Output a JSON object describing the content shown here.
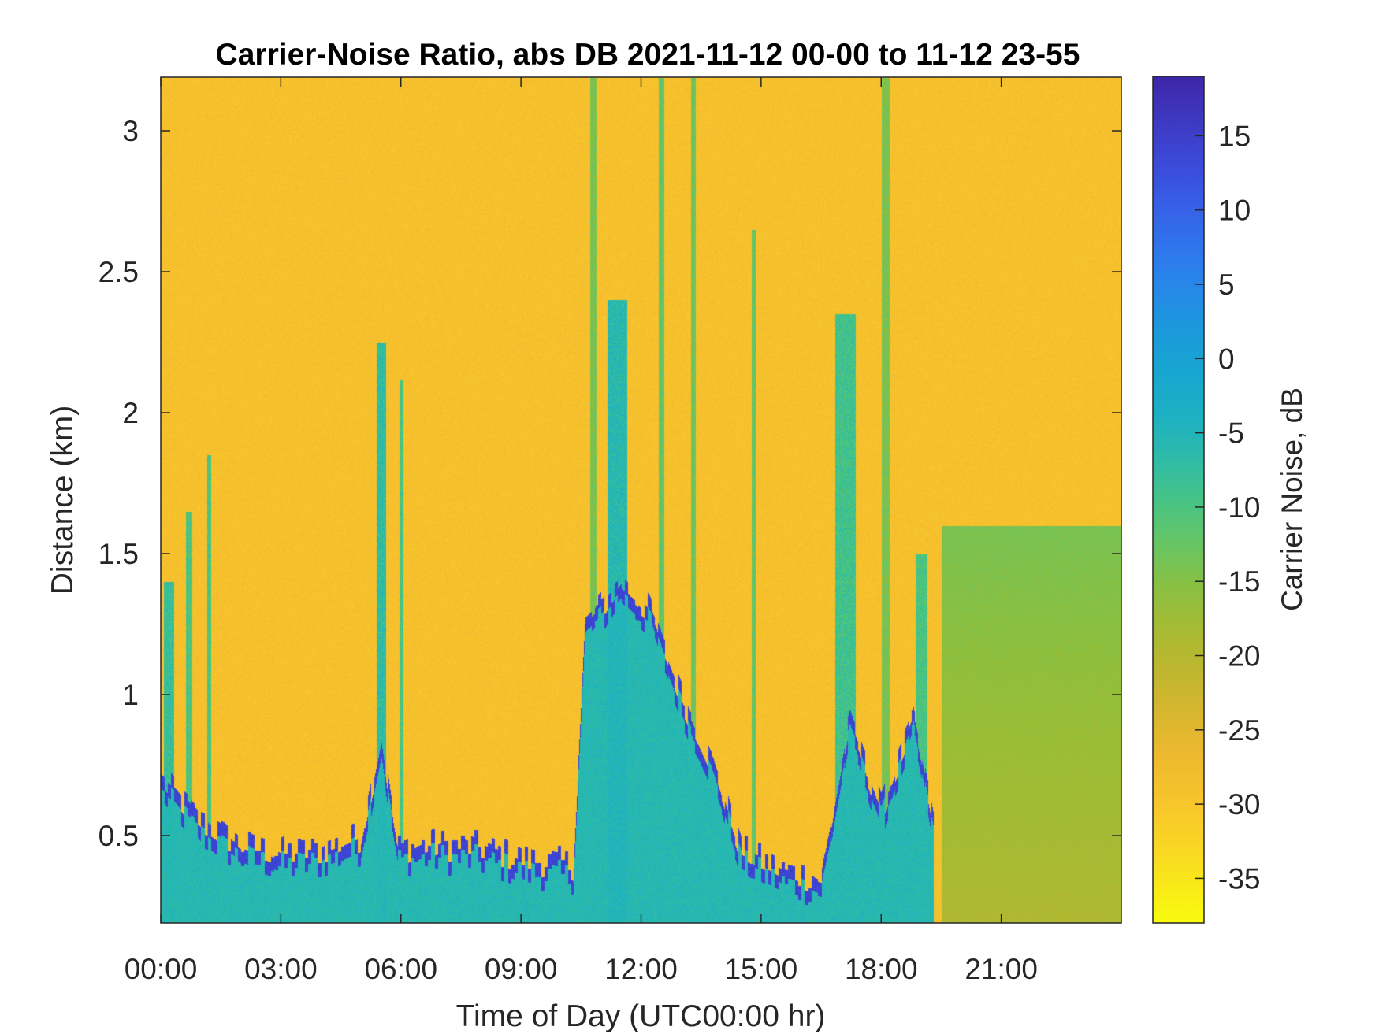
{
  "chart_data": {
    "type": "heatmap",
    "title": "Carrier-Noise Ratio, abs DB 2021-11-12 00-00 to 11-12 23-55",
    "xlabel": "Time of Day (UTC00:00 hr)",
    "ylabel": "Distance (km)",
    "colorbar_label": "Carrier Noise, dB",
    "colormap": "parula-reversed",
    "xlim_hours": [
      0,
      24
    ],
    "ylim_km": [
      0.19,
      3.19
    ],
    "clim_db": [
      -38,
      19
    ],
    "x_ticks": [
      {
        "hour": 0,
        "label": "00:00"
      },
      {
        "hour": 3,
        "label": "03:00"
      },
      {
        "hour": 6,
        "label": "06:00"
      },
      {
        "hour": 9,
        "label": "09:00"
      },
      {
        "hour": 12,
        "label": "12:00"
      },
      {
        "hour": 15,
        "label": "15:00"
      },
      {
        "hour": 18,
        "label": "18:00"
      },
      {
        "hour": 21,
        "label": "21:00"
      }
    ],
    "y_ticks": [
      {
        "km": 0.5,
        "label": "0.5"
      },
      {
        "km": 1,
        "label": "1"
      },
      {
        "km": 1.5,
        "label": "1.5"
      },
      {
        "km": 2,
        "label": "2"
      },
      {
        "km": 2.5,
        "label": "2.5"
      },
      {
        "km": 3,
        "label": "3"
      }
    ],
    "colorbar_ticks": [
      {
        "db": 15,
        "label": "15"
      },
      {
        "db": 10,
        "label": "10"
      },
      {
        "db": 5,
        "label": "5"
      },
      {
        "db": 0,
        "label": "0"
      },
      {
        "db": -5,
        "label": "-5"
      },
      {
        "db": -10,
        "label": "-10"
      },
      {
        "db": -15,
        "label": "-15"
      },
      {
        "db": -20,
        "label": "-20"
      },
      {
        "db": -25,
        "label": "-25"
      },
      {
        "db": -30,
        "label": "-30"
      },
      {
        "db": -35,
        "label": "-35"
      }
    ],
    "background_db": -29,
    "colors": {
      "bg_noise": "#f4bb30",
      "cyan": "#19b4c8",
      "teal": "#3cbf9a",
      "blue": "#3a4fe6",
      "green_far": "#9cbf3a"
    },
    "boundary_layer_top_km": [
      {
        "hour": 0.0,
        "km": 0.7
      },
      {
        "hour": 1.0,
        "km": 0.55
      },
      {
        "hour": 2.0,
        "km": 0.47
      },
      {
        "hour": 3.0,
        "km": 0.44
      },
      {
        "hour": 4.0,
        "km": 0.45
      },
      {
        "hour": 5.0,
        "km": 0.5
      },
      {
        "hour": 5.5,
        "km": 0.85
      },
      {
        "hour": 5.9,
        "km": 0.46
      },
      {
        "hour": 7.0,
        "km": 0.47
      },
      {
        "hour": 8.0,
        "km": 0.46
      },
      {
        "hour": 9.0,
        "km": 0.42
      },
      {
        "hour": 10.3,
        "km": 0.4
      },
      {
        "hour": 10.6,
        "km": 1.25
      },
      {
        "hour": 11.5,
        "km": 1.4
      },
      {
        "hour": 12.2,
        "km": 1.3
      },
      {
        "hour": 13.0,
        "km": 1.0
      },
      {
        "hour": 13.8,
        "km": 0.75
      },
      {
        "hour": 14.5,
        "km": 0.45
      },
      {
        "hour": 15.5,
        "km": 0.38
      },
      {
        "hour": 16.5,
        "km": 0.35
      },
      {
        "hour": 17.2,
        "km": 0.9
      },
      {
        "hour": 18.0,
        "km": 0.6
      },
      {
        "hour": 18.8,
        "km": 0.9
      },
      {
        "hour": 19.3,
        "km": 0.55
      }
    ],
    "plumes": [
      {
        "hour": 0.2,
        "width_h": 0.25,
        "top_km": 1.4,
        "db": -8
      },
      {
        "hour": 0.7,
        "width_h": 0.15,
        "top_km": 1.65,
        "db": -10
      },
      {
        "hour": 1.2,
        "width_h": 0.1,
        "top_km": 1.85,
        "db": -10
      },
      {
        "hour": 5.5,
        "width_h": 0.25,
        "top_km": 2.25,
        "db": -7
      },
      {
        "hour": 6.0,
        "width_h": 0.1,
        "top_km": 2.12,
        "db": -10
      },
      {
        "hour": 10.8,
        "width_h": 0.15,
        "top_km": 3.19,
        "db": -14
      },
      {
        "hour": 11.4,
        "width_h": 0.5,
        "top_km": 2.4,
        "db": -6
      },
      {
        "hour": 12.5,
        "width_h": 0.15,
        "top_km": 3.19,
        "db": -12
      },
      {
        "hour": 13.3,
        "width_h": 0.12,
        "top_km": 3.19,
        "db": -13
      },
      {
        "hour": 14.8,
        "width_h": 0.1,
        "top_km": 2.65,
        "db": -12
      },
      {
        "hour": 17.1,
        "width_h": 0.5,
        "top_km": 2.35,
        "db": -9
      },
      {
        "hour": 18.1,
        "width_h": 0.2,
        "top_km": 3.19,
        "db": -14
      },
      {
        "hour": 19.0,
        "width_h": 0.3,
        "top_km": 1.5,
        "db": -10
      }
    ],
    "far_field_haze": {
      "hour_start": 19.5,
      "hour_end": 24,
      "top_km": 1.6,
      "db": -20
    }
  }
}
